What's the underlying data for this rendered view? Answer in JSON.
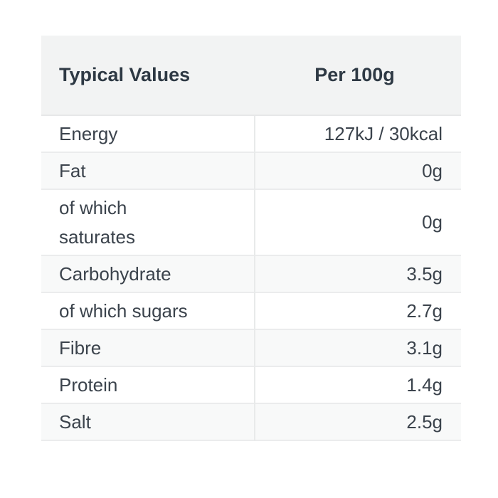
{
  "table": {
    "header": {
      "label": "Typical Values",
      "value": "Per 100g"
    },
    "rows": [
      {
        "label": "Energy",
        "value": "127kJ / 30kcal"
      },
      {
        "label": "Fat",
        "value": "0g"
      },
      {
        "label": "of which saturates",
        "value": "0g"
      },
      {
        "label": "Carbohydrate",
        "value": "3.5g"
      },
      {
        "label": "of which sugars",
        "value": "2.7g"
      },
      {
        "label": "Fibre",
        "value": "3.1g"
      },
      {
        "label": "Protein",
        "value": "1.4g"
      },
      {
        "label": "Salt",
        "value": "2.5g"
      }
    ]
  },
  "colors": {
    "page_background": "#ffffff",
    "header_background": "#f2f3f3",
    "stripe_background": "#f8f9f9",
    "row_border": "#ebeced",
    "column_divider": "#e8eaea",
    "header_text": "#2e3944",
    "body_text": "#3b434c"
  },
  "chart_data": {
    "type": "table",
    "title": "Typical Values",
    "columns": [
      "Typical Values",
      "Per 100g"
    ],
    "rows": [
      [
        "Energy",
        "127kJ / 30kcal"
      ],
      [
        "Fat",
        "0g"
      ],
      [
        "of which saturates",
        "0g"
      ],
      [
        "Carbohydrate",
        "3.5g"
      ],
      [
        "of which sugars",
        "2.7g"
      ],
      [
        "Fibre",
        "3.1g"
      ],
      [
        "Protein",
        "1.4g"
      ],
      [
        "Salt",
        "2.5g"
      ]
    ]
  }
}
